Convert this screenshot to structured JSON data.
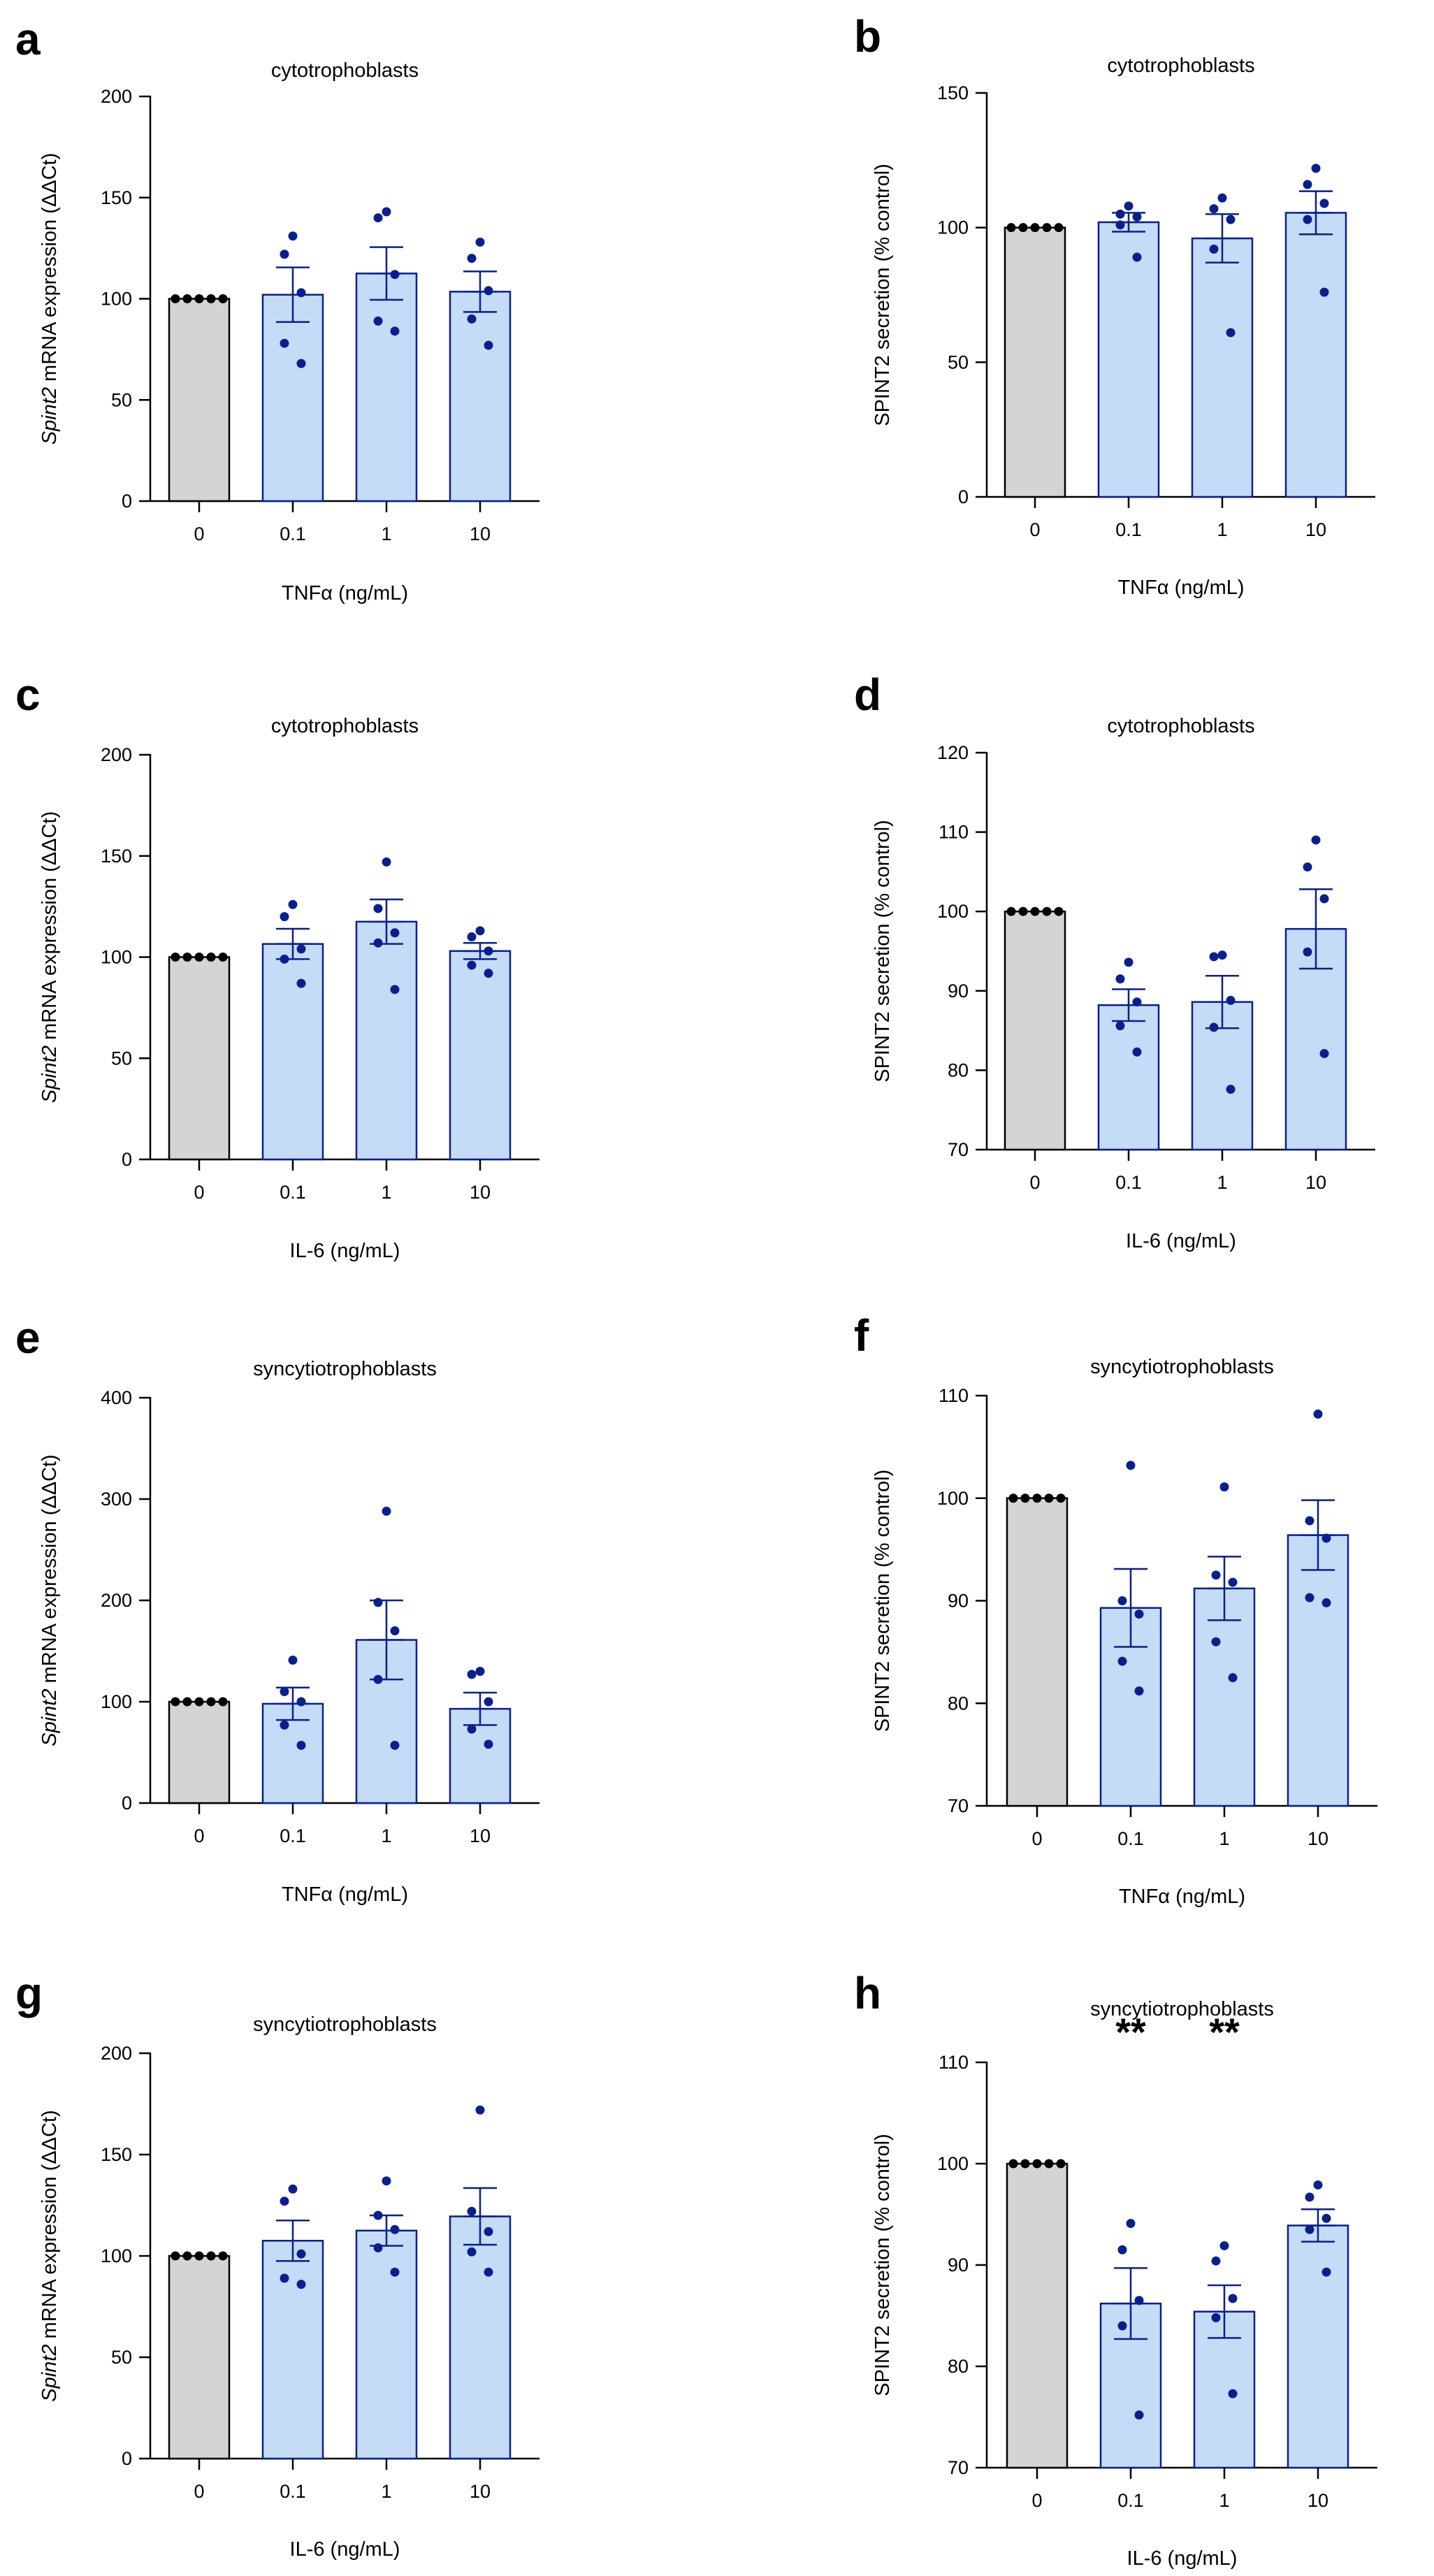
{
  "chart_data": [
    {
      "id": "a",
      "type": "bar",
      "letter": "a",
      "title": "cytotrophoblasts",
      "xlabel": "TNFα (ng/mL)",
      "ylabel": {
        "italic": "Spint2",
        "rest": " mRNA expression (ΔΔCt)"
      },
      "ylim": [
        0,
        200
      ],
      "yticks": [
        0,
        50,
        100,
        150,
        200
      ],
      "categories": [
        "0",
        "0.1",
        "1",
        "10"
      ],
      "values": [
        100,
        102,
        112.5,
        103.5
      ],
      "sem": [
        0,
        13.5,
        13,
        10
      ],
      "points": [
        [
          100,
          100,
          100,
          100,
          100
        ],
        [
          131,
          122,
          103,
          78,
          68
        ],
        [
          143,
          140,
          112,
          89,
          84
        ],
        [
          128,
          120,
          104,
          90,
          77
        ]
      ],
      "significance": [
        "",
        "",
        "",
        ""
      ]
    },
    {
      "id": "b",
      "type": "bar",
      "letter": "b",
      "title": "cytotrophoblasts",
      "xlabel": "TNFα (ng/mL)",
      "ylabel": {
        "italic": "",
        "rest": "SPINT2 secretion (% control)"
      },
      "ylim": [
        0,
        150
      ],
      "yticks": [
        0,
        50,
        100,
        150
      ],
      "categories": [
        "0",
        "0.1",
        "1",
        "10"
      ],
      "values": [
        100,
        102,
        96,
        105.5
      ],
      "sem": [
        0,
        3.5,
        9,
        8
      ],
      "points": [
        [
          100,
          100,
          100,
          100,
          100
        ],
        [
          108,
          105,
          104,
          101,
          89
        ],
        [
          111,
          107,
          103,
          92,
          61
        ],
        [
          122,
          116,
          109,
          103,
          76
        ]
      ],
      "significance": [
        "",
        "",
        "",
        ""
      ]
    },
    {
      "id": "c",
      "type": "bar",
      "letter": "c",
      "title": "cytotrophoblasts",
      "xlabel": "IL-6 (ng/mL)",
      "ylabel": {
        "italic": "Spint2",
        "rest": " mRNA expression (ΔΔCt)"
      },
      "ylim": [
        0,
        200
      ],
      "yticks": [
        0,
        50,
        100,
        150,
        200
      ],
      "categories": [
        "0",
        "0.1",
        "1",
        "10"
      ],
      "values": [
        100,
        106.5,
        117.5,
        103
      ],
      "sem": [
        0,
        7.5,
        11,
        4
      ],
      "points": [
        [
          100,
          100,
          100,
          100,
          100
        ],
        [
          126,
          120,
          104,
          99,
          87
        ],
        [
          147,
          124,
          112,
          107,
          84
        ],
        [
          113,
          110,
          103,
          96,
          92
        ]
      ],
      "significance": [
        "",
        "",
        "",
        ""
      ]
    },
    {
      "id": "d",
      "type": "bar",
      "letter": "d",
      "title": "cytotrophoblasts",
      "xlabel": "IL-6 (ng/mL)",
      "ylabel": {
        "italic": "",
        "rest": "SPINT2 secretion (% control)"
      },
      "ylim": [
        70,
        120
      ],
      "yticks": [
        70,
        80,
        90,
        100,
        110,
        120
      ],
      "categories": [
        "0",
        "0.1",
        "1",
        "10"
      ],
      "values": [
        100,
        88.2,
        88.6,
        97.8
      ],
      "sem": [
        0,
        2,
        3.3,
        5
      ],
      "points": [
        [
          100,
          100,
          100,
          100,
          100
        ],
        [
          93.6,
          91.5,
          88.6,
          85.6,
          82.3
        ],
        [
          94.5,
          94.3,
          88.8,
          85.4,
          77.6
        ],
        [
          109,
          105.6,
          101.6,
          94.9,
          82.1
        ]
      ],
      "significance": [
        "",
        "",
        "",
        ""
      ]
    },
    {
      "id": "e",
      "type": "bar",
      "letter": "e",
      "title": "syncytiotrophoblasts",
      "xlabel": "TNFα (ng/mL)",
      "ylabel": {
        "italic": "Spint2",
        "rest": " mRNA expression (ΔΔCt)"
      },
      "ylim": [
        0,
        400
      ],
      "yticks": [
        0,
        100,
        200,
        300,
        400
      ],
      "categories": [
        "0",
        "0.1",
        "1",
        "10"
      ],
      "values": [
        100,
        98,
        161,
        93
      ],
      "sem": [
        0,
        16,
        39,
        16
      ],
      "points": [
        [
          100,
          100,
          100,
          100,
          100
        ],
        [
          141,
          110,
          100,
          77,
          57
        ],
        [
          288,
          198,
          170,
          122,
          57
        ],
        [
          130,
          127,
          100,
          73,
          58
        ]
      ],
      "significance": [
        "",
        "",
        "",
        ""
      ]
    },
    {
      "id": "f",
      "type": "bar",
      "letter": "f",
      "title": "syncytiotrophoblasts",
      "xlabel": "TNFα (ng/mL)",
      "ylabel": {
        "italic": "",
        "rest": "SPINT2 secretion (% control)"
      },
      "ylim": [
        70,
        110
      ],
      "yticks": [
        70,
        80,
        90,
        100,
        110
      ],
      "categories": [
        "0",
        "0.1",
        "1",
        "10"
      ],
      "values": [
        100,
        89.3,
        91.2,
        96.4
      ],
      "sem": [
        0,
        3.8,
        3.1,
        3.4
      ],
      "points": [
        [
          100,
          100,
          100,
          100,
          100
        ],
        [
          103.2,
          90,
          88.7,
          84.1,
          81.2
        ],
        [
          101.1,
          92.5,
          91.8,
          86,
          82.5
        ],
        [
          108.2,
          97.8,
          96.1,
          90.3,
          89.8
        ]
      ],
      "significance": [
        "",
        "",
        "",
        ""
      ]
    },
    {
      "id": "g",
      "type": "bar",
      "letter": "g",
      "title": "syncytiotrophoblasts",
      "xlabel": "IL-6 (ng/mL)",
      "ylabel": {
        "italic": "Spint2",
        "rest": " mRNA expression (ΔΔCt)"
      },
      "ylim": [
        0,
        200
      ],
      "yticks": [
        0,
        50,
        100,
        150,
        200
      ],
      "categories": [
        "0",
        "0.1",
        "1",
        "10"
      ],
      "values": [
        100,
        107.5,
        112.5,
        119.5
      ],
      "sem": [
        0,
        10,
        7.5,
        14
      ],
      "points": [
        [
          100,
          100,
          100,
          100,
          100
        ],
        [
          133,
          127,
          101,
          89,
          86
        ],
        [
          137,
          120,
          113,
          104,
          92
        ],
        [
          172,
          122,
          112,
          102,
          92
        ]
      ],
      "significance": [
        "",
        "",
        "",
        ""
      ]
    },
    {
      "id": "h",
      "type": "bar",
      "letter": "h",
      "title": "syncytiotrophoblasts",
      "xlabel": "IL-6 (ng/mL)",
      "ylabel": {
        "italic": "",
        "rest": "SPINT2 secretion (% control)"
      },
      "ylim": [
        70,
        110
      ],
      "yticks": [
        70,
        80,
        90,
        100,
        110
      ],
      "categories": [
        "0",
        "0.1",
        "1",
        "10"
      ],
      "values": [
        100,
        86.2,
        85.4,
        93.9
      ],
      "sem": [
        0,
        3.5,
        2.6,
        1.6
      ],
      "points": [
        [
          100,
          100,
          100,
          100,
          100
        ],
        [
          94.1,
          91.5,
          86.5,
          84,
          75.2
        ],
        [
          91.9,
          90.4,
          86.7,
          84.8,
          77.3
        ],
        [
          97.9,
          96.7,
          94.6,
          93.5,
          89.3
        ]
      ],
      "significance": [
        "",
        "**",
        "**",
        ""
      ]
    }
  ],
  "colors": {
    "control_fill": "#d4d4d4",
    "treated_fill": "#c4dcf6",
    "treated_stroke": "#0a1f8f",
    "control_dots": "#000000",
    "treated_dots": "#0a1f8f",
    "axis": "#000000"
  }
}
